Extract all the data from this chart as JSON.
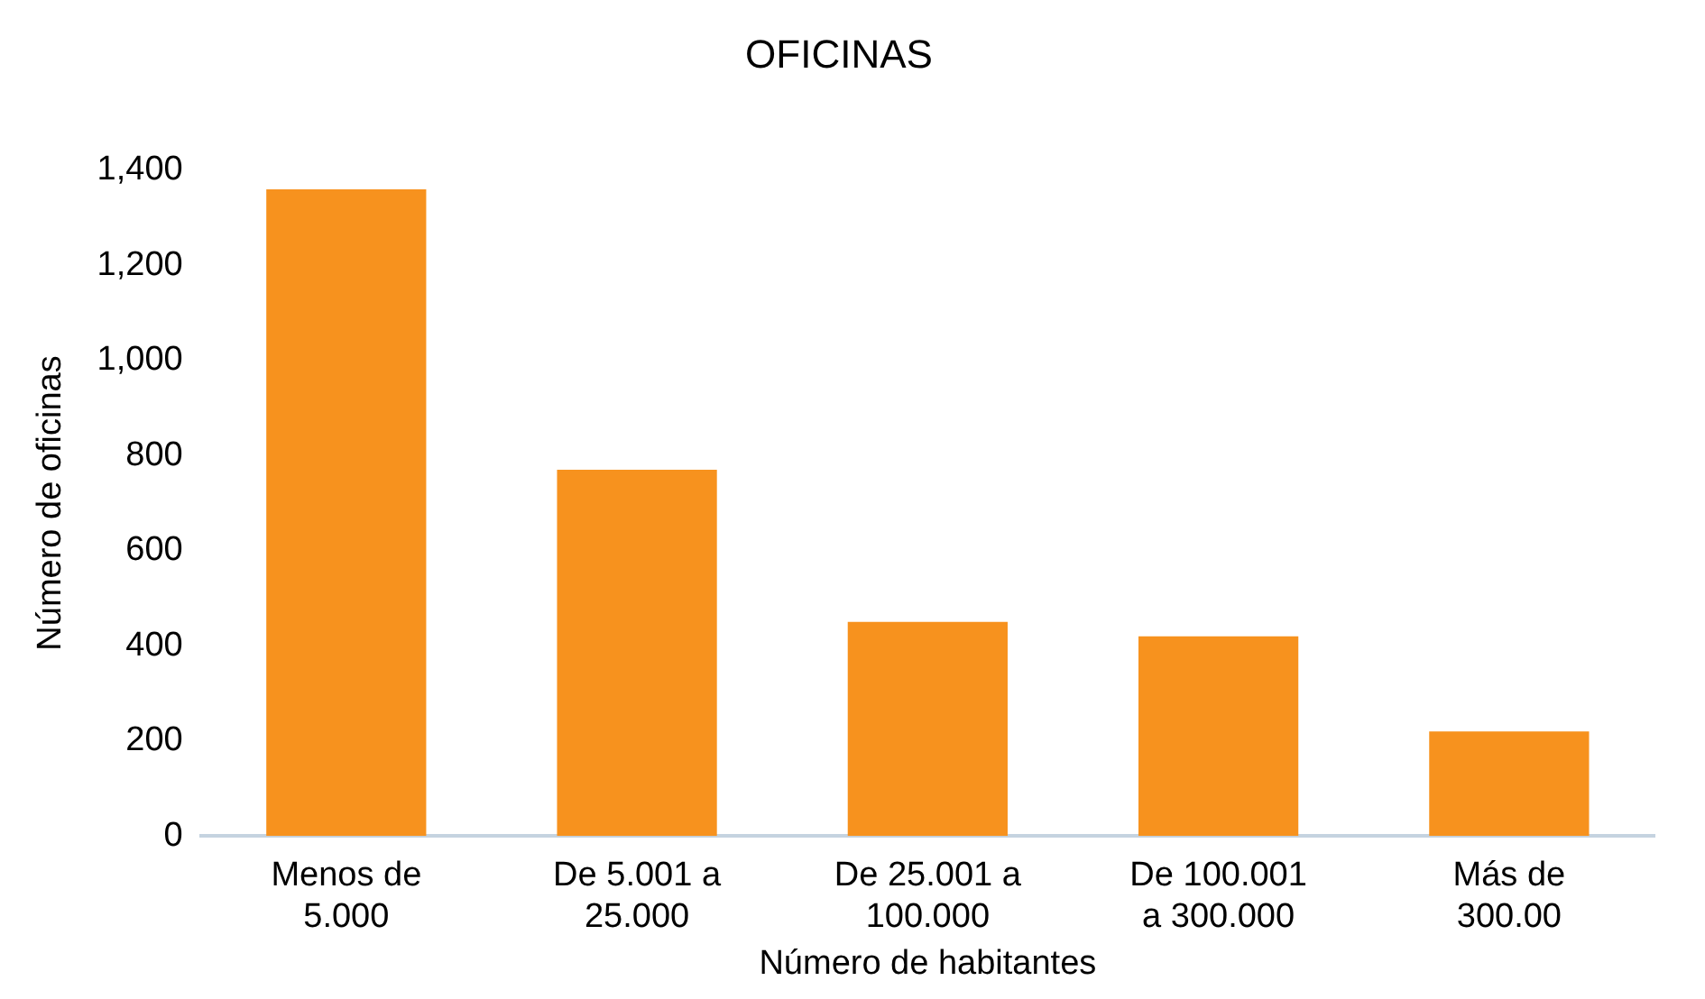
{
  "chart_data": {
    "type": "bar",
    "title": "OFICINAS",
    "xlabel": "Número de habitantes",
    "ylabel": "Número de oficinas",
    "categories": [
      "Menos de\n5.000",
      "De 5.001 a\n25.000",
      "De 25.001 a\n100.000",
      "De 100.001\na 300.000",
      "Más de\n300.00"
    ],
    "values": [
      1360,
      770,
      450,
      420,
      220
    ],
    "color": "#f7921e",
    "ylim": [
      0,
      1400
    ],
    "yticks": [
      0,
      200,
      400,
      600,
      800,
      {
        "value": 1000,
        "label": "1,000"
      },
      {
        "value": 1200,
        "label": "1,200"
      },
      {
        "value": 1400,
        "label": "1,400"
      }
    ],
    "grid": false,
    "legend": false
  }
}
